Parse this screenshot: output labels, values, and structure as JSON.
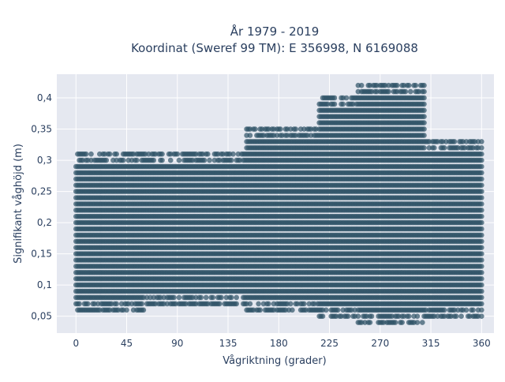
{
  "chart_data": {
    "type": "scatter",
    "title": "År 1979 - 2019",
    "subtitle": "Koordinat (Sweref 99 TM): E 356998, N 6169088",
    "xlabel": "Vågriktning (grader)",
    "ylabel": "Signifikant våghöjd (m)",
    "xlim": [
      -17,
      371
    ],
    "ylim": [
      0.023,
      0.438
    ],
    "grid": true,
    "legend": "none",
    "x_ticks": [
      0,
      45,
      90,
      135,
      180,
      225,
      270,
      315,
      360
    ],
    "x_tick_labels": [
      "0",
      "45",
      "90",
      "135",
      "180",
      "225",
      "270",
      "315",
      "360"
    ],
    "y_ticks": [
      0.05,
      0.1,
      0.15,
      0.2,
      0.25,
      0.3,
      0.35,
      0.4
    ],
    "y_tick_labels": [
      "0,05",
      "0,1",
      "0,15",
      "0,2",
      "0,25",
      "0,3",
      "0,35",
      "0,4"
    ],
    "series": [
      {
        "marker_color": "#2f5266",
        "envelope_approx": [
          {
            "x_range": [
              0,
              60
            ],
            "y_range": [
              0.06,
              0.31
            ]
          },
          {
            "x_range": [
              60,
              150
            ],
            "y_range": [
              0.07,
              0.31
            ]
          },
          {
            "x_range": [
              150,
              215
            ],
            "y_range": [
              0.06,
              0.35
            ]
          },
          {
            "x_range": [
              215,
              250
            ],
            "y_range": [
              0.05,
              0.4
            ]
          },
          {
            "x_range": [
              250,
              310
            ],
            "y_range": [
              0.04,
              0.42
            ]
          },
          {
            "x_range": [
              310,
              360
            ],
            "y_range": [
              0.05,
              0.33
            ]
          }
        ]
      }
    ]
  },
  "colors": {
    "plot_background": "#e5e8f0",
    "grid": "#ffffff",
    "marker": "#2f5266",
    "text": "#2a3f5f"
  }
}
